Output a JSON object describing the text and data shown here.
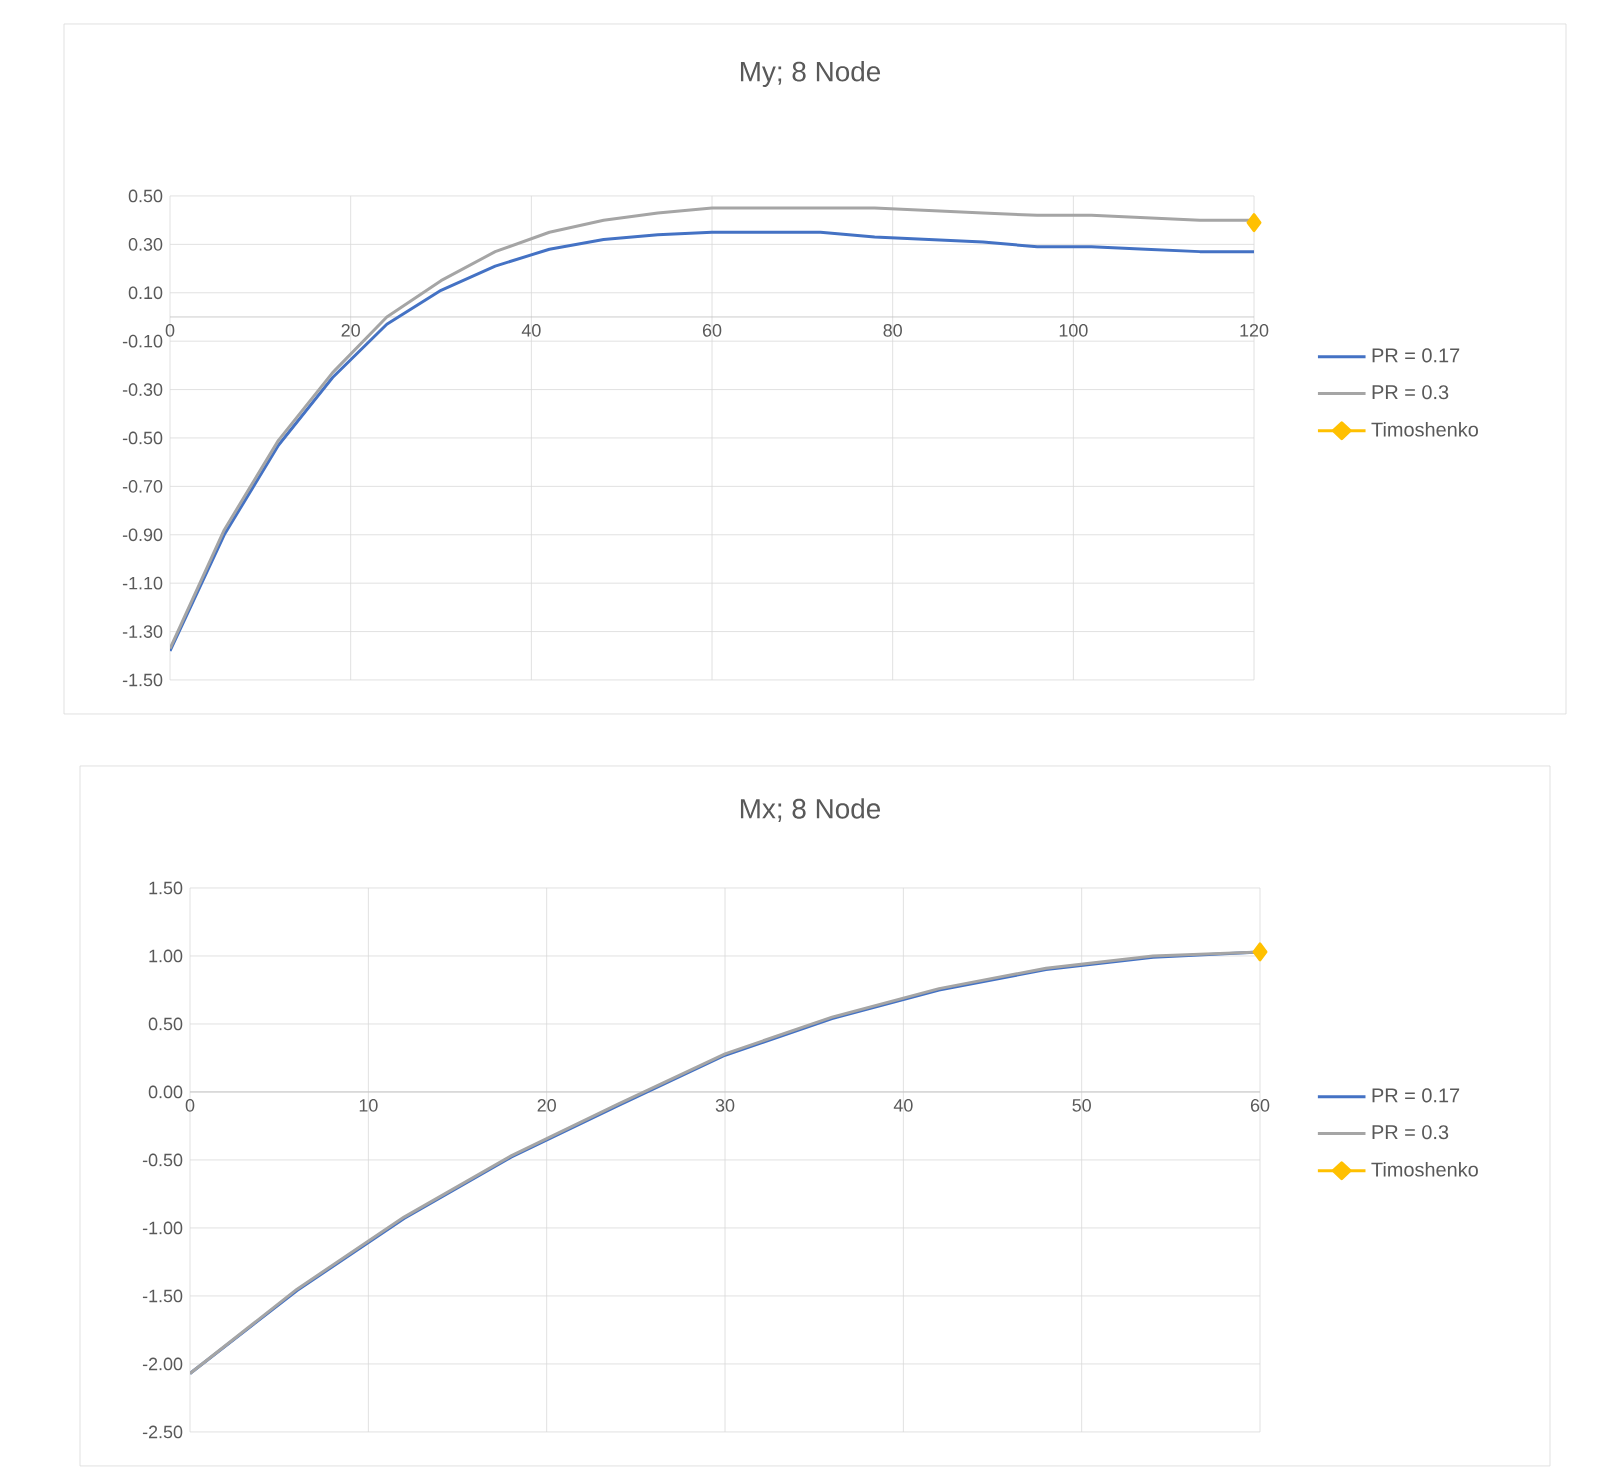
{
  "chart_data": [
    {
      "type": "line",
      "title": "My; 8 Node",
      "x": [
        0,
        6,
        12,
        18,
        24,
        30,
        36,
        42,
        48,
        54,
        60,
        66,
        72,
        78,
        84,
        90,
        96,
        102,
        108,
        114,
        120
      ],
      "series": [
        {
          "name": "PR = 0.17",
          "color": "#4472c4",
          "values": [
            -1.38,
            -0.9,
            -0.53,
            -0.25,
            -0.03,
            0.11,
            0.21,
            0.28,
            0.32,
            0.34,
            0.35,
            0.35,
            0.35,
            0.33,
            0.32,
            0.31,
            0.29,
            0.29,
            0.28,
            0.27,
            0.27
          ]
        },
        {
          "name": "PR = 0.3",
          "color": "#a5a5a5",
          "values": [
            -1.37,
            -0.88,
            -0.51,
            -0.23,
            0.0,
            0.15,
            0.27,
            0.35,
            0.4,
            0.43,
            0.45,
            0.45,
            0.45,
            0.45,
            0.44,
            0.43,
            0.42,
            0.42,
            0.41,
            0.4,
            0.4
          ]
        },
        {
          "name": "Timoshenko",
          "color": "#ffc000",
          "marker": "diamond",
          "x": [
            120
          ],
          "values": [
            0.39
          ]
        }
      ],
      "xlim": [
        0,
        120
      ],
      "xticks": [
        0,
        20,
        40,
        60,
        80,
        100,
        120
      ],
      "ylim": [
        -1.5,
        0.5
      ],
      "yticks": [
        {
          "value": -1.5,
          "label": "-1.50"
        },
        {
          "value": -1.3,
          "label": "-1.30"
        },
        {
          "value": -1.1,
          "label": "-1.10"
        },
        {
          "value": -0.9,
          "label": "-0.90"
        },
        {
          "value": -0.7,
          "label": "-0.70"
        },
        {
          "value": -0.5,
          "label": "-0.50"
        },
        {
          "value": -0.3,
          "label": "-0.30"
        },
        {
          "value": -0.1,
          "label": "-0.10"
        },
        {
          "value": 0.1,
          "label": "0.10"
        },
        {
          "value": 0.3,
          "label": "0.30"
        },
        {
          "value": 0.5,
          "label": "0.50"
        }
      ],
      "grid": true,
      "legend": "right"
    },
    {
      "type": "line",
      "title": "Mx; 8 Node",
      "x": [
        0,
        6,
        12,
        18,
        24,
        30,
        36,
        42,
        48,
        54,
        60
      ],
      "series": [
        {
          "name": "PR = 0.17",
          "color": "#4472c4",
          "values": [
            -2.07,
            -1.46,
            -0.93,
            -0.48,
            -0.1,
            0.27,
            0.54,
            0.75,
            0.9,
            0.99,
            1.03
          ]
        },
        {
          "name": "PR = 0.3",
          "color": "#a5a5a5",
          "values": [
            -2.07,
            -1.45,
            -0.92,
            -0.47,
            -0.09,
            0.28,
            0.55,
            0.76,
            0.91,
            1.0,
            1.03
          ]
        },
        {
          "name": "Timoshenko",
          "color": "#ffc000",
          "marker": "diamond",
          "x": [
            60
          ],
          "values": [
            1.03
          ]
        }
      ],
      "xlim": [
        0,
        60
      ],
      "xticks": [
        0,
        10,
        20,
        30,
        40,
        50,
        60
      ],
      "ylim": [
        -2.5,
        1.5
      ],
      "yticks": [
        {
          "value": -2.5,
          "label": "-2.50"
        },
        {
          "value": -2.0,
          "label": "-2.00"
        },
        {
          "value": -1.5,
          "label": "-1.50"
        },
        {
          "value": -1.0,
          "label": "-1.00"
        },
        {
          "value": -0.5,
          "label": "-0.50"
        },
        {
          "value": 0.0,
          "label": "0.00"
        },
        {
          "value": 0.5,
          "label": "0.50"
        },
        {
          "value": 1.0,
          "label": "1.00"
        },
        {
          "value": 1.5,
          "label": "1.50"
        }
      ],
      "grid": true,
      "legend": "right"
    }
  ]
}
